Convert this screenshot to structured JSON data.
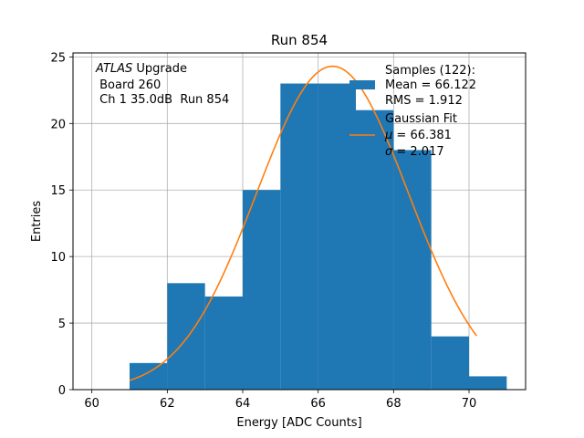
{
  "chart_data": {
    "type": "bar",
    "title": "Run 854",
    "xlabel": "Energy [ADC Counts]",
    "ylabel": "Entries",
    "xlim": [
      59.5,
      71.5
    ],
    "ylim": [
      0,
      25.3
    ],
    "xticks": [
      60,
      62,
      64,
      66,
      68,
      70
    ],
    "yticks": [
      0,
      5,
      10,
      15,
      20,
      25
    ],
    "grid": true,
    "annotation": {
      "italic_prefix": "ATLAS",
      "line1_rest": " Upgrade",
      "line2": " Board 260",
      "line3": " Ch 1 35.0dB  Run 854"
    },
    "histogram": {
      "name": "Samples (122):",
      "color": "#1f77b4",
      "bins": [
        {
          "x0": 61,
          "x1": 62,
          "count": 2
        },
        {
          "x0": 62,
          "x1": 63,
          "count": 8
        },
        {
          "x0": 63,
          "x1": 64,
          "count": 7
        },
        {
          "x0": 64,
          "x1": 65,
          "count": 15
        },
        {
          "x0": 65,
          "x1": 66,
          "count": 23
        },
        {
          "x0": 66,
          "x1": 67,
          "count": 23
        },
        {
          "x0": 67,
          "x1": 68,
          "count": 21
        },
        {
          "x0": 68,
          "x1": 69,
          "count": 18
        },
        {
          "x0": 69,
          "x1": 70,
          "count": 4
        },
        {
          "x0": 70,
          "x1": 71,
          "count": 1
        }
      ]
    },
    "fit": {
      "name": "Gaussian Fit",
      "color": "#ff7f0e",
      "amplitude": 24.3,
      "mu": 66.381,
      "sigma": 2.017,
      "x_range": [
        61.0,
        70.2
      ]
    },
    "legend": {
      "position": "top-right",
      "samples_title": "Samples (122):",
      "samples_mean": "Mean = 66.122",
      "samples_rms": "RMS = 1.912",
      "fit_title": "Gaussian Fit",
      "fit_mu_symbol": "μ",
      "fit_mu_rest": " = 66.381",
      "fit_sigma_symbol": "σ",
      "fit_sigma_rest": " = 2.017"
    }
  }
}
